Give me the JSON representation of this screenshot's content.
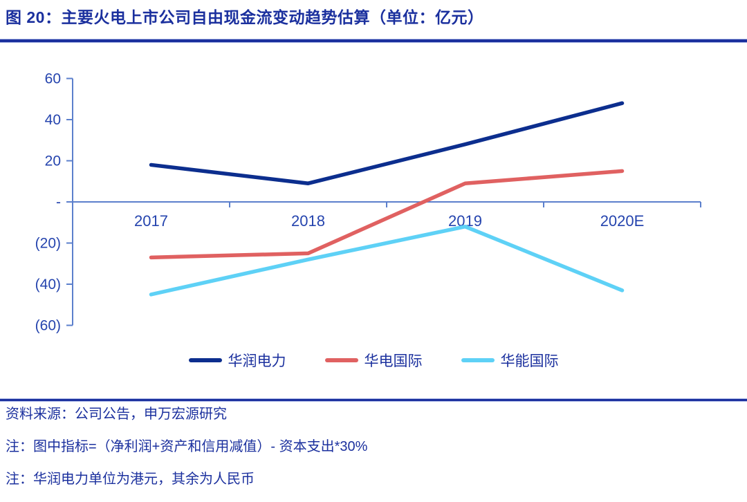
{
  "theme": {
    "accent": "#1b309e",
    "axis_color": "#5b7fcc",
    "tick_label_color": "#2544ae"
  },
  "header": {
    "title": "图 20：主要火电上市公司自由现金流变动趋势估算（单位：亿元）"
  },
  "chart_data": {
    "type": "line",
    "title": "图 20：主要火电上市公司自由现金流变动趋势估算（单位：亿元）",
    "categories": [
      "2017",
      "2018",
      "2019",
      "2020E"
    ],
    "series": [
      {
        "name": "华润电力",
        "color": "#0c2e8e",
        "values": [
          18,
          9,
          28,
          48
        ]
      },
      {
        "name": "华电国际",
        "color": "#e06161",
        "values": [
          -27,
          -25,
          9,
          15
        ]
      },
      {
        "name": "华能国际",
        "color": "#5ed1f6",
        "values": [
          -45,
          -28,
          -12,
          -43
        ]
      }
    ],
    "ylim": [
      -60,
      60
    ],
    "ytick_values": [
      60,
      40,
      20,
      0,
      -20,
      -40,
      -60
    ],
    "ytick_labels": [
      "60",
      "40",
      "20",
      "-",
      "(20)",
      "(40)",
      "(60)"
    ],
    "grid": false,
    "legend_position": "bottom"
  },
  "footer": {
    "source": "资料来源：公司公告，申万宏源研究",
    "note1": "注：图中指标=（净利润+资产和信用减值）- 资本支出*30%",
    "note2": "注：华润电力单位为港元，其余为人民币"
  }
}
